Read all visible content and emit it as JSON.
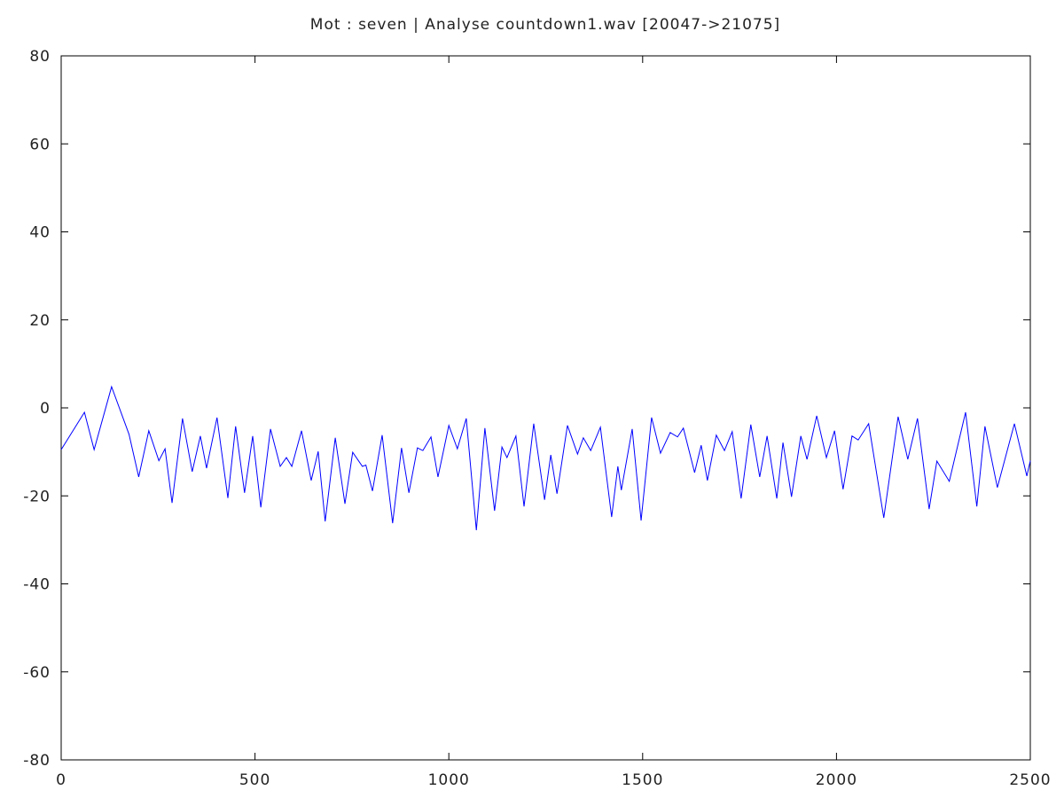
{
  "chart_data": {
    "type": "line",
    "title": "Mot : seven | Analyse countdown1.wav [20047->21075]",
    "x": [
      0,
      60,
      85,
      130,
      175,
      200,
      226,
      252,
      268,
      286,
      313,
      338,
      359,
      375,
      402,
      430,
      450,
      473,
      494,
      515,
      540,
      565,
      581,
      595,
      620,
      645,
      663,
      681,
      707,
      732,
      752,
      777,
      786,
      803,
      828,
      855,
      878,
      897,
      919,
      933,
      954,
      972,
      1000,
      1022,
      1045,
      1071,
      1093,
      1118,
      1137,
      1150,
      1173,
      1194,
      1219,
      1247,
      1263,
      1279,
      1306,
      1332,
      1347,
      1366,
      1391,
      1420,
      1436,
      1445,
      1473,
      1496,
      1523,
      1546,
      1571,
      1590,
      1605,
      1634,
      1651,
      1667,
      1690,
      1711,
      1731,
      1754,
      1779,
      1802,
      1821,
      1846,
      1862,
      1884,
      1908,
      1924,
      1949,
      1974,
      1995,
      2017,
      2040,
      2056,
      2083,
      2122,
      2159,
      2184,
      2209,
      2239,
      2259,
      2291,
      2333,
      2362,
      2383,
      2415,
      2459,
      2491,
      2500
    ],
    "series": [
      {
        "color": "#0000ff",
        "values": [
          -9.5,
          -1,
          -9.5,
          4.8,
          -6,
          -15.7,
          -5.2,
          -12,
          -9.3,
          -21.6,
          -2.4,
          -14.5,
          -6.4,
          -13.7,
          -2.2,
          -20.5,
          -4.2,
          -19.3,
          -6.4,
          -22.6,
          -4.8,
          -13.3,
          -11.3,
          -13.3,
          -5.2,
          -16.5,
          -9.9,
          -25.8,
          -6.8,
          -21.8,
          -10.1,
          -13.3,
          -13,
          -18.9,
          -6.2,
          -26.2,
          -9.1,
          -19.3,
          -9.1,
          -9.7,
          -6.6,
          -15.7,
          -4,
          -9.3,
          -2.4,
          -27.8,
          -4.6,
          -23.4,
          -8.9,
          -11.3,
          -6.4,
          -22.4,
          -3.6,
          -20.9,
          -10.7,
          -19.5,
          -4,
          -10.5,
          -6.8,
          -9.7,
          -4.4,
          -24.8,
          -13.3,
          -18.7,
          -4.8,
          -25.6,
          -2.2,
          -10.3,
          -5.6,
          -6.6,
          -4.6,
          -14.7,
          -8.5,
          -16.5,
          -6.2,
          -9.7,
          -5.4,
          -20.6,
          -3.8,
          -15.7,
          -6.4,
          -20.6,
          -7.9,
          -20.2,
          -6.4,
          -11.7,
          -1.8,
          -11.3,
          -5.2,
          -18.5,
          -6.4,
          -7.3,
          -3.6,
          -25,
          -2,
          -11.7,
          -2.4,
          -23,
          -12.1,
          -16.7,
          -1,
          -22.4,
          -4.2,
          -18.1,
          -3.6,
          -15.5,
          -12
        ]
      }
    ],
    "xlim": [
      0,
      2500
    ],
    "xticks": [
      0,
      500,
      1000,
      1500,
      2000,
      2500
    ],
    "ylim": [
      -80,
      80
    ],
    "yticks": [
      -80,
      -60,
      -40,
      -20,
      0,
      20,
      40,
      60,
      80
    ]
  }
}
